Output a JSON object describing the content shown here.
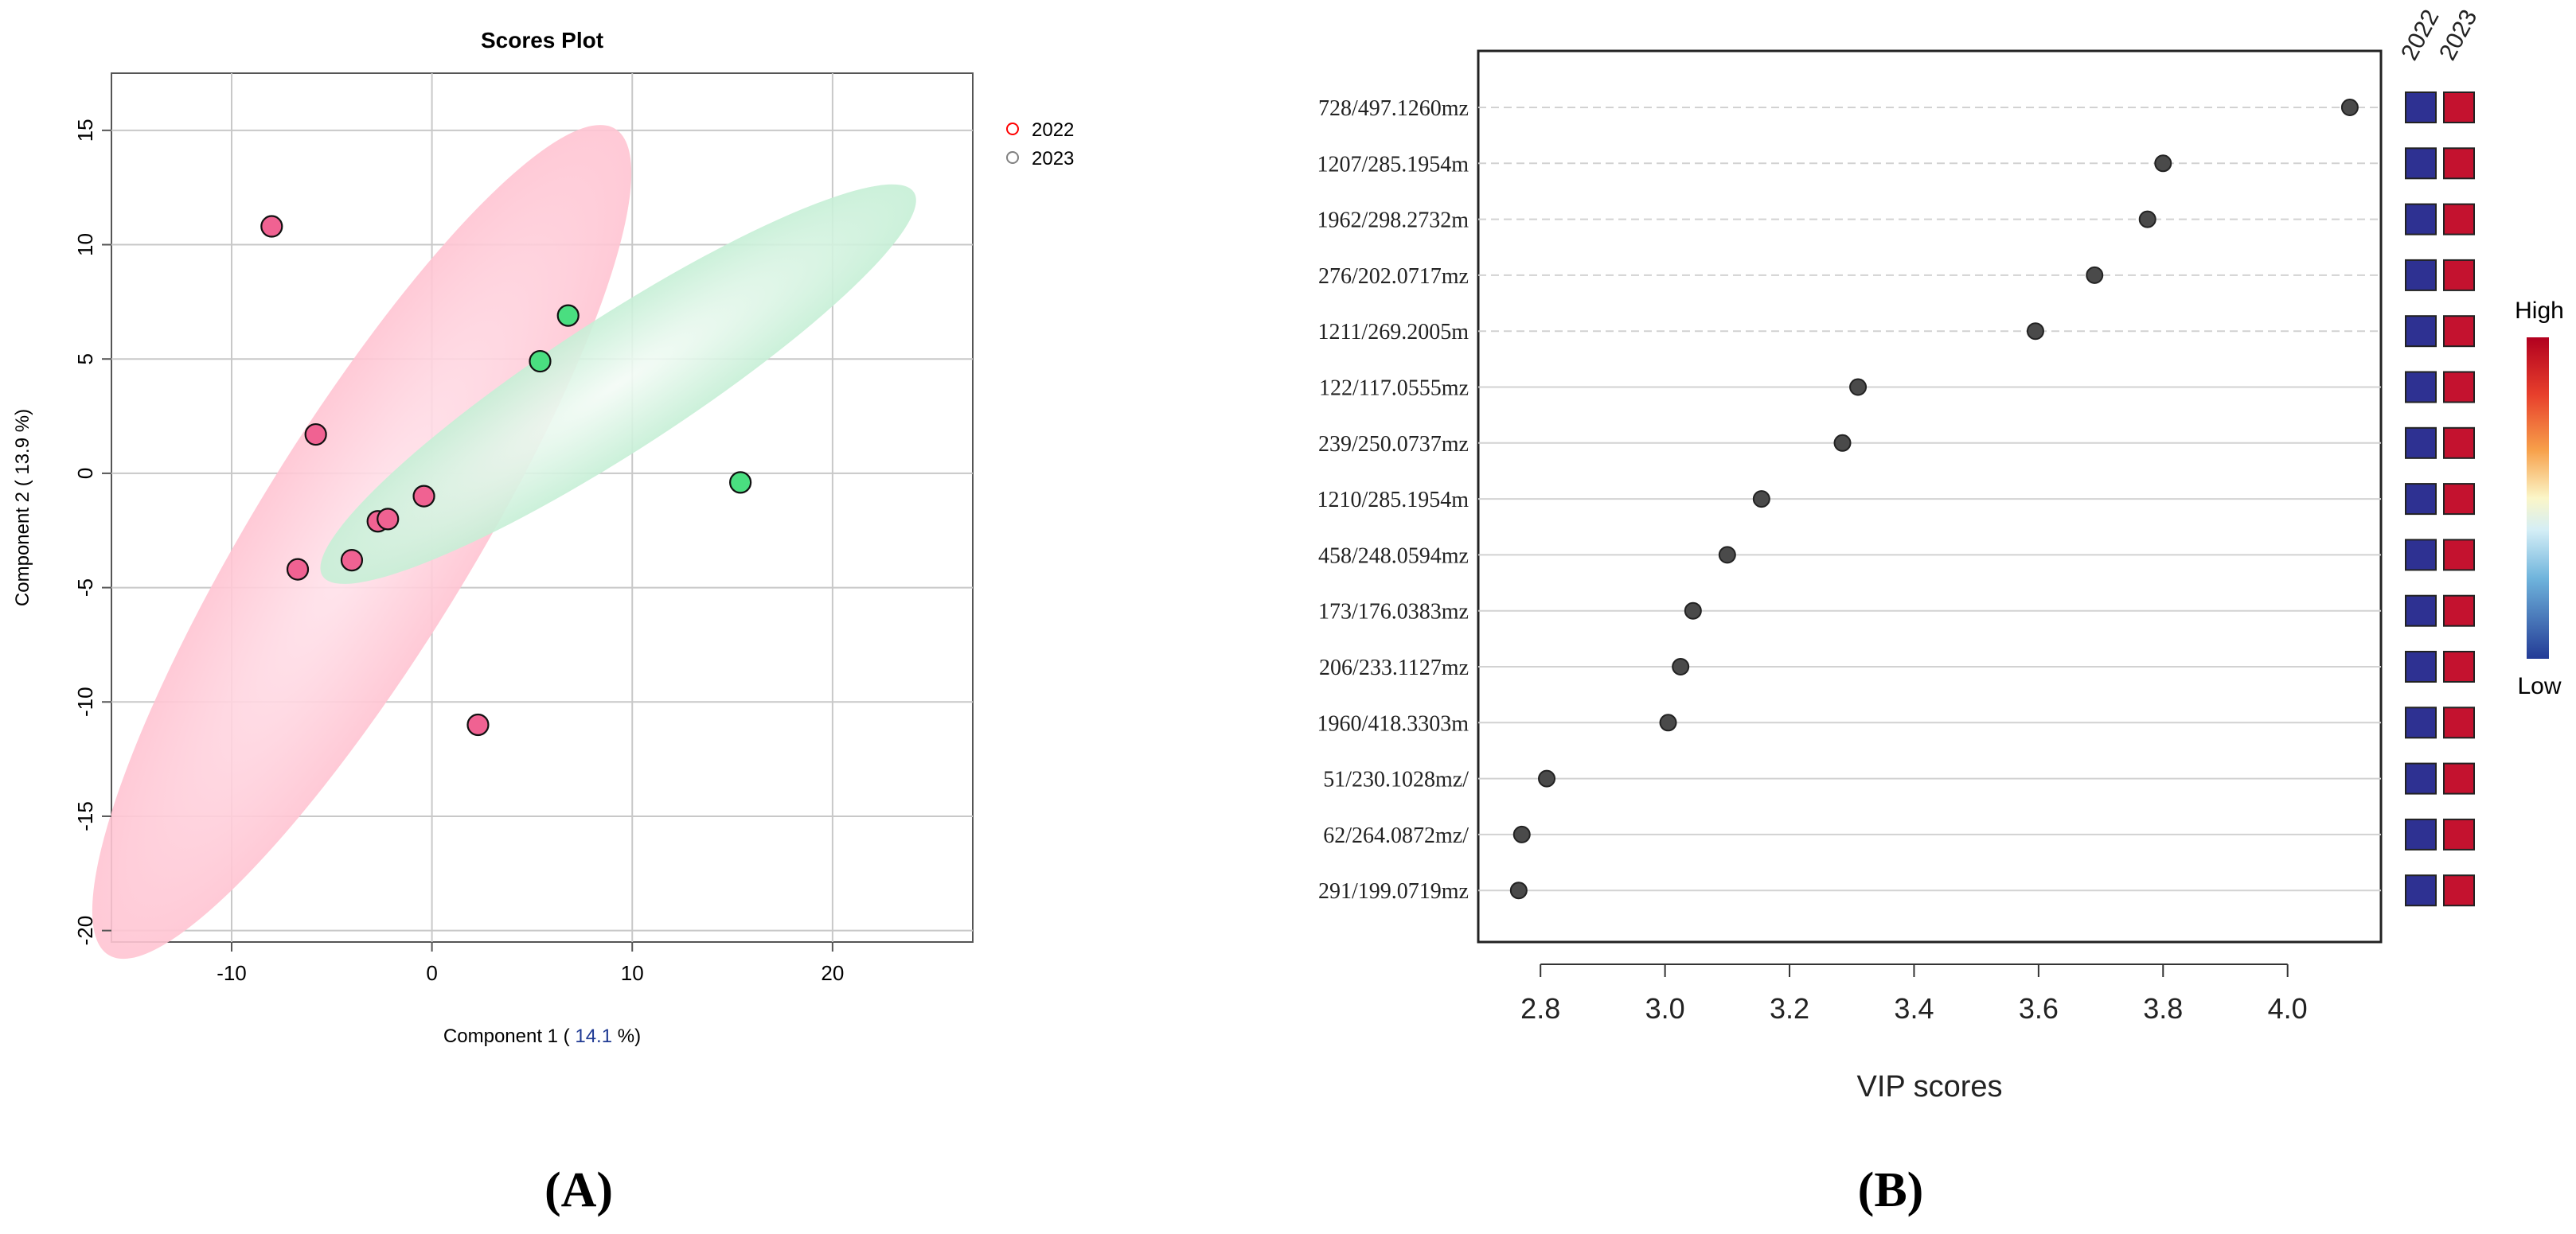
{
  "chart_data": [
    {
      "type": "scatter",
      "title": "Scores Plot",
      "xlabel_prefix": "Component 1 ( ",
      "xlabel_value": "14.1",
      "xlabel_suffix": " %)",
      "ylabel": "Component 2 ( 13.9 %)",
      "xlim": [
        -16,
        27
      ],
      "ylim": [
        -20.5,
        17.5
      ],
      "x_ticks": [
        -10,
        0,
        10,
        20
      ],
      "y_ticks": [
        -20,
        -15,
        -10,
        -5,
        0,
        5,
        10,
        15
      ],
      "grid": true,
      "legend_position": "top-right",
      "series": [
        {
          "name": "2022",
          "color": "#f06292",
          "legend_color": "#ff0000",
          "points": [
            {
              "x": -8.0,
              "y": 10.8
            },
            {
              "x": -5.8,
              "y": 1.7
            },
            {
              "x": -2.7,
              "y": -2.1
            },
            {
              "x": -2.2,
              "y": -2.0
            },
            {
              "x": -0.4,
              "y": -1.0
            },
            {
              "x": -4.0,
              "y": -3.8
            },
            {
              "x": -6.7,
              "y": -4.2
            },
            {
              "x": 2.3,
              "y": -11.0
            }
          ],
          "ellipse": {
            "cx": -3.5,
            "cy": -3.0,
            "rx": 24.2,
            "ry": 5.4,
            "angle_deg": -58.5
          }
        },
        {
          "name": "2023",
          "color": "#4ade80",
          "legend_color": "#808080",
          "points": [
            {
              "x": 6.8,
              "y": 6.9
            },
            {
              "x": 5.4,
              "y": 4.9
            },
            {
              "x": 15.4,
              "y": -0.4
            }
          ],
          "ellipse": {
            "cx": 9.3,
            "cy": 3.9,
            "rx": 17.6,
            "ry": 3.3,
            "angle_deg": -33
          }
        }
      ]
    },
    {
      "type": "scatter",
      "xlabel": "VIP scores",
      "xlim": [
        2.7,
        4.15
      ],
      "x_ticks": [
        "2.8",
        "3.0",
        "3.2",
        "3.4",
        "3.6",
        "3.8",
        "4.0"
      ],
      "categories": [
        "728/497.1260mz",
        "1207/285.1954m",
        "1962/298.2732m",
        "276/202.0717mz",
        "1211/269.2005m",
        "122/117.0555mz",
        "239/250.0737mz",
        "1210/285.1954m",
        "458/248.0594mz",
        "173/176.0383mz",
        "206/233.1127mz",
        "1960/418.3303m",
        "51/230.1028mz/",
        "62/264.0872mz/",
        "291/199.0719mz"
      ],
      "values": [
        4.1,
        3.8,
        3.775,
        3.69,
        3.595,
        3.31,
        3.285,
        3.155,
        3.1,
        3.045,
        3.025,
        3.005,
        2.81,
        2.77,
        2.765
      ],
      "heatmap_columns": [
        "2022",
        "2023"
      ],
      "heatmap_colors": [
        "#2e3192",
        "#c4122f"
      ],
      "color_scale": {
        "high_label": "High",
        "low_label": "Low"
      }
    }
  ],
  "panel_labels": {
    "a": "(A)",
    "b": "(B)"
  }
}
